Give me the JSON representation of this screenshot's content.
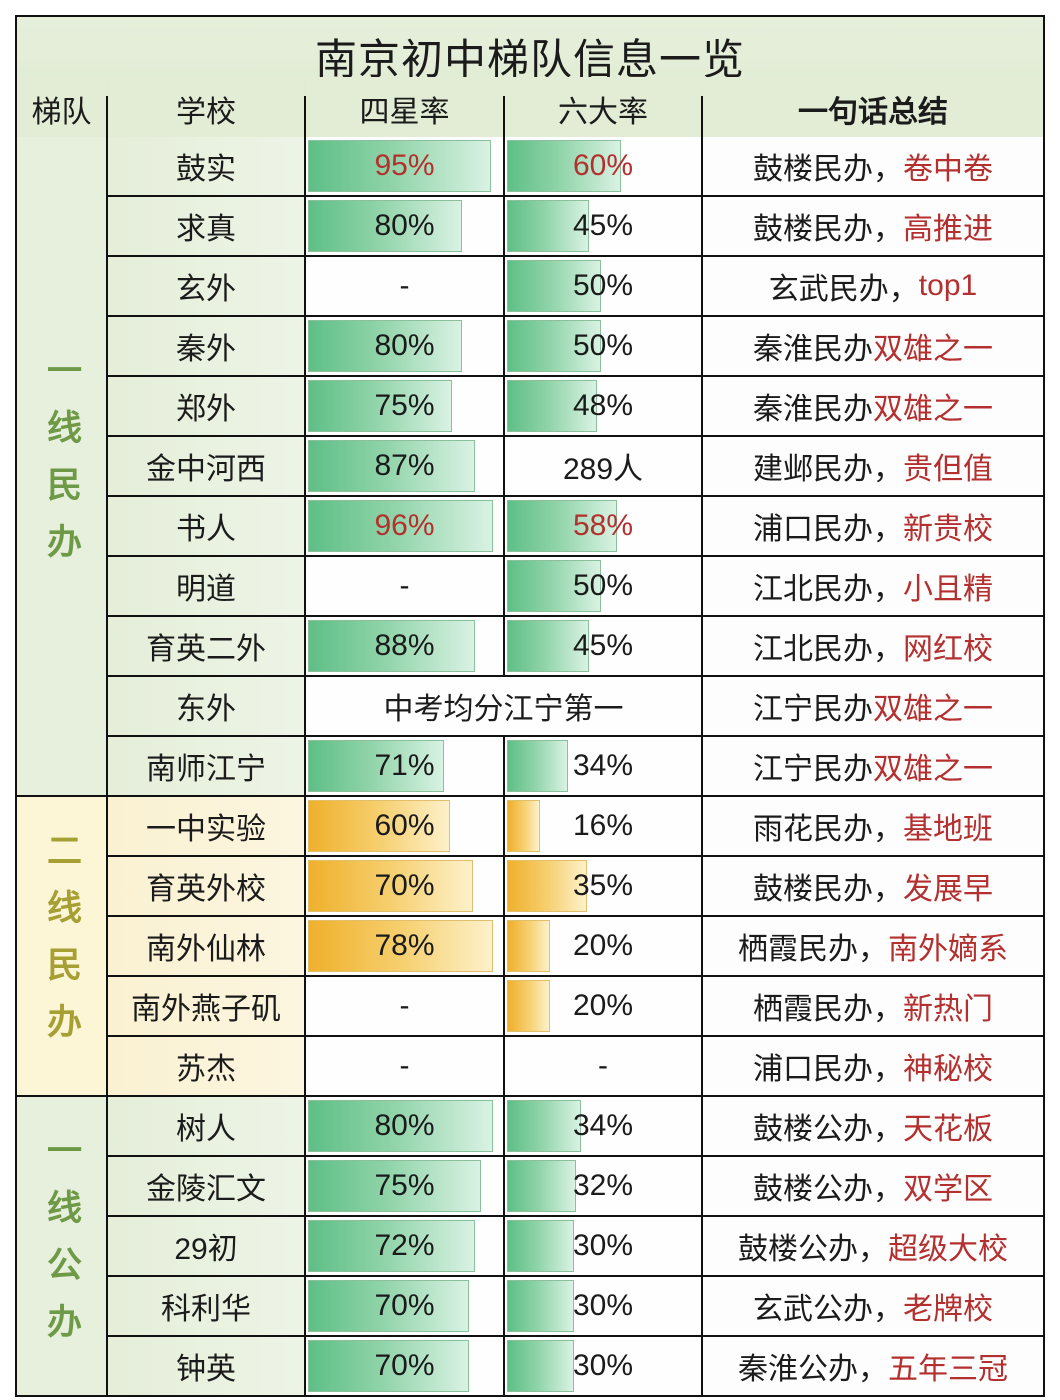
{
  "title": "南京初中梯队信息一览",
  "columns": {
    "tier": "梯队",
    "school": "学校",
    "fourstar": "四星率",
    "sixbig": "六大率",
    "summary": "一句话总结"
  },
  "colors": {
    "green_bar_start": "#5ebf86",
    "green_bar_end": "#d9f2e3",
    "yellow_bar_start": "#efb02c",
    "yellow_bar_end": "#fdf1cb",
    "highlight_text": "#b3302f",
    "tier_green_text": "#6e9a48",
    "tier_yellow_text": "#a69f33",
    "header_bg": "#e3edd6"
  },
  "groups": [
    {
      "label": "一线民办",
      "theme": "green",
      "rows": [
        {
          "school": "鼓实",
          "fourstar": {
            "text": "95%",
            "bar": 95,
            "highlight": true
          },
          "sixbig": {
            "text": "60%",
            "bar": 60,
            "highlight": true
          },
          "summary": {
            "prefix": "鼓楼民办，",
            "tag": "卷中卷"
          }
        },
        {
          "school": "求真",
          "fourstar": {
            "text": "80%",
            "bar": 80
          },
          "sixbig": {
            "text": "45%",
            "bar": 44
          },
          "summary": {
            "prefix": "鼓楼民办，",
            "tag": "高推进"
          }
        },
        {
          "school": "玄外",
          "fourstar": {
            "text": "-",
            "bar": 0
          },
          "sixbig": {
            "text": "50%",
            "bar": 50
          },
          "summary": {
            "prefix": "玄武民办，",
            "tag": "top1"
          }
        },
        {
          "school": "秦外",
          "fourstar": {
            "text": "80%",
            "bar": 80
          },
          "sixbig": {
            "text": "50%",
            "bar": 50
          },
          "summary": {
            "prefix": "秦淮民办",
            "tag": "双雄之一"
          }
        },
        {
          "school": "郑外",
          "fourstar": {
            "text": "75%",
            "bar": 75
          },
          "sixbig": {
            "text": "48%",
            "bar": 48
          },
          "summary": {
            "prefix": "秦淮民办",
            "tag": "双雄之一"
          }
        },
        {
          "school": "金中河西",
          "fourstar": {
            "text": "87%",
            "bar": 87
          },
          "sixbig": {
            "text": "289人",
            "bar": 0
          },
          "summary": {
            "prefix": "建邺民办，",
            "tag": "贵但值"
          }
        },
        {
          "school": "书人",
          "fourstar": {
            "text": "96%",
            "bar": 96,
            "highlight": true
          },
          "sixbig": {
            "text": "58%",
            "bar": 58,
            "highlight": true
          },
          "summary": {
            "prefix": "浦口民办，",
            "tag": "新贵校"
          }
        },
        {
          "school": "明道",
          "fourstar": {
            "text": "-",
            "bar": 0
          },
          "sixbig": {
            "text": "50%",
            "bar": 50
          },
          "summary": {
            "prefix": "江北民办，",
            "tag": "小且精"
          }
        },
        {
          "school": "育英二外",
          "fourstar": {
            "text": "88%",
            "bar": 87
          },
          "sixbig": {
            "text": "45%",
            "bar": 44
          },
          "summary": {
            "prefix": "江北民办，",
            "tag": "网红校"
          }
        },
        {
          "school": "东外",
          "merged": "中考均分江宁第一",
          "summary": {
            "prefix": "江宁民办",
            "tag": "双雄之一"
          }
        },
        {
          "school": "南师江宁",
          "fourstar": {
            "text": "71%",
            "bar": 71
          },
          "sixbig": {
            "text": "34%",
            "bar": 33
          },
          "summary": {
            "prefix": "江宁民办",
            "tag": "双雄之一"
          }
        }
      ]
    },
    {
      "label": "二线民办",
      "theme": "yellow",
      "rows": [
        {
          "school": "一中实验",
          "fourstar": {
            "text": "60%",
            "bar": 74
          },
          "sixbig": {
            "text": "16%",
            "bar": 19
          },
          "summary": {
            "prefix": "雨花民办，",
            "tag": "基地班"
          }
        },
        {
          "school": "育英外校",
          "fourstar": {
            "text": "70%",
            "bar": 86
          },
          "sixbig": {
            "text": "35%",
            "bar": 43
          },
          "summary": {
            "prefix": "鼓楼民办，",
            "tag": "发展早"
          }
        },
        {
          "school": "南外仙林",
          "fourstar": {
            "text": "78%",
            "bar": 96
          },
          "sixbig": {
            "text": "20%",
            "bar": 24
          },
          "summary": {
            "prefix": "栖霞民办，",
            "tag": "南外嫡系"
          }
        },
        {
          "school": "南外燕子矶",
          "fourstar": {
            "text": "-",
            "bar": 0
          },
          "sixbig": {
            "text": "20%",
            "bar": 24
          },
          "summary": {
            "prefix": "栖霞民办，",
            "tag": "新热门"
          }
        },
        {
          "school": "苏杰",
          "fourstar": {
            "text": "-",
            "bar": 0
          },
          "sixbig": {
            "text": "-",
            "bar": 0
          },
          "summary": {
            "prefix": "浦口民办，",
            "tag": "神秘校"
          }
        }
      ]
    },
    {
      "label": "一线公办",
      "theme": "green",
      "rows": [
        {
          "school": "树人",
          "fourstar": {
            "text": "80%",
            "bar": 96
          },
          "sixbig": {
            "text": "34%",
            "bar": 40
          },
          "summary": {
            "prefix": "鼓楼公办，",
            "tag": "天花板"
          }
        },
        {
          "school": "金陵汇文",
          "fourstar": {
            "text": "75%",
            "bar": 90
          },
          "sixbig": {
            "text": "32%",
            "bar": 37
          },
          "summary": {
            "prefix": "鼓楼公办，",
            "tag": "双学区"
          }
        },
        {
          "school": "29初",
          "fourstar": {
            "text": "72%",
            "bar": 87
          },
          "sixbig": {
            "text": "30%",
            "bar": 36
          },
          "summary": {
            "prefix": "鼓楼公办，",
            "tag": "超级大校"
          }
        },
        {
          "school": "科利华",
          "fourstar": {
            "text": "70%",
            "bar": 84
          },
          "sixbig": {
            "text": "30%",
            "bar": 36
          },
          "summary": {
            "prefix": "玄武公办，",
            "tag": "老牌校"
          }
        },
        {
          "school": "钟英",
          "fourstar": {
            "text": "70%",
            "bar": 84
          },
          "sixbig": {
            "text": "30%",
            "bar": 36
          },
          "summary": {
            "prefix": "秦淮公办，",
            "tag": "五年三冠"
          }
        }
      ]
    }
  ]
}
